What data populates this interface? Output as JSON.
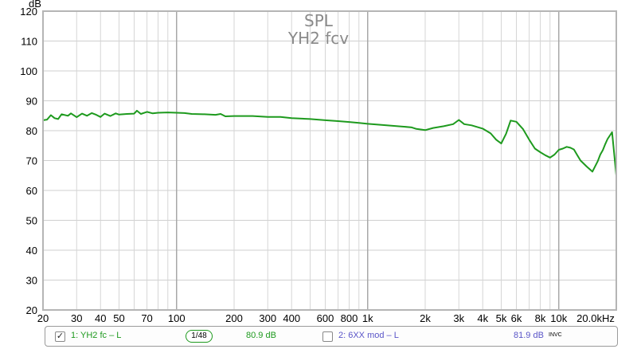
{
  "chart_data": {
    "type": "line",
    "title": "SPL",
    "subtitle": "YH2 fcv",
    "ylabel": "dB",
    "xlabel": "",
    "x_scale": "log",
    "xlim": [
      20,
      20000
    ],
    "ylim": [
      20,
      120
    ],
    "grid": true,
    "y_ticks": [
      20,
      30,
      40,
      50,
      60,
      70,
      80,
      90,
      100,
      110,
      120
    ],
    "x_ticks": [
      {
        "v": 20,
        "label": "20"
      },
      {
        "v": 30,
        "label": "30"
      },
      {
        "v": 40,
        "label": "40"
      },
      {
        "v": 50,
        "label": "50"
      },
      {
        "v": 70,
        "label": "70"
      },
      {
        "v": 100,
        "label": "100"
      },
      {
        "v": 200,
        "label": "200"
      },
      {
        "v": 300,
        "label": "300"
      },
      {
        "v": 400,
        "label": "400"
      },
      {
        "v": 600,
        "label": "600"
      },
      {
        "v": 800,
        "label": "800"
      },
      {
        "v": 1000,
        "label": "1k"
      },
      {
        "v": 2000,
        "label": "2k"
      },
      {
        "v": 3000,
        "label": "3k"
      },
      {
        "v": 4000,
        "label": "4k"
      },
      {
        "v": 5000,
        "label": "5k"
      },
      {
        "v": 6000,
        "label": "6k"
      },
      {
        "v": 8000,
        "label": "8k"
      },
      {
        "v": 10000,
        "label": "10k"
      },
      {
        "v": 20000,
        "label": "20.0kHz"
      }
    ],
    "series": [
      {
        "name": "1: YH2 fc - L",
        "color": "#1e9a1e",
        "x": [
          20,
          21,
          22,
          23,
          24,
          25,
          27,
          28,
          30,
          32,
          34,
          36,
          38,
          40,
          42,
          45,
          48,
          50,
          55,
          60,
          62,
          65,
          70,
          75,
          80,
          90,
          100,
          110,
          120,
          140,
          160,
          170,
          180,
          200,
          250,
          300,
          350,
          400,
          500,
          600,
          700,
          800,
          900,
          1000,
          1200,
          1500,
          1700,
          1800,
          2000,
          2200,
          2500,
          2800,
          3000,
          3200,
          3500,
          4000,
          4400,
          4700,
          5000,
          5300,
          5600,
          6000,
          6500,
          7000,
          7500,
          8000,
          8500,
          9000,
          9500,
          10000,
          10500,
          11000,
          11500,
          12000,
          12500,
          13000,
          14000,
          15000,
          16000,
          16500,
          17000,
          17500,
          18000,
          19000,
          20000
        ],
        "y": [
          83.5,
          83.7,
          85.2,
          84.2,
          83.9,
          85.5,
          85.0,
          85.8,
          84.5,
          85.7,
          85.0,
          85.9,
          85.3,
          84.6,
          85.7,
          84.9,
          85.8,
          85.4,
          85.6,
          85.7,
          86.7,
          85.6,
          86.3,
          85.8,
          86.0,
          86.1,
          86.0,
          85.9,
          85.6,
          85.5,
          85.3,
          85.6,
          84.8,
          84.9,
          84.9,
          84.6,
          84.6,
          84.2,
          83.9,
          83.5,
          83.2,
          82.9,
          82.6,
          82.3,
          81.9,
          81.4,
          81.1,
          80.6,
          80.2,
          80.9,
          81.5,
          82.2,
          83.6,
          82.2,
          81.8,
          80.7,
          79.1,
          77.0,
          75.7,
          79.0,
          83.4,
          83.0,
          80.5,
          77.0,
          74.0,
          72.8,
          71.8,
          71.0,
          72.0,
          73.6,
          74.0,
          74.6,
          74.3,
          73.7,
          71.8,
          70.0,
          68.0,
          66.3,
          69.8,
          72.0,
          73.5,
          75.5,
          77.2,
          79.5,
          65.0
        ]
      }
    ]
  },
  "legend": {
    "item1_check": "✓",
    "item1_label": "1: YH2 fc – L",
    "item1_value": "80.9 dB",
    "smoothing_num": "1",
    "smoothing_den": "48",
    "item2_check": "",
    "item2_label": "2: 6XX mod – L",
    "item2_value": "81.9 dB",
    "item2_flag": "INVC",
    "item1_color": "#1e9a1e",
    "item2_color": "#5a55c8"
  }
}
